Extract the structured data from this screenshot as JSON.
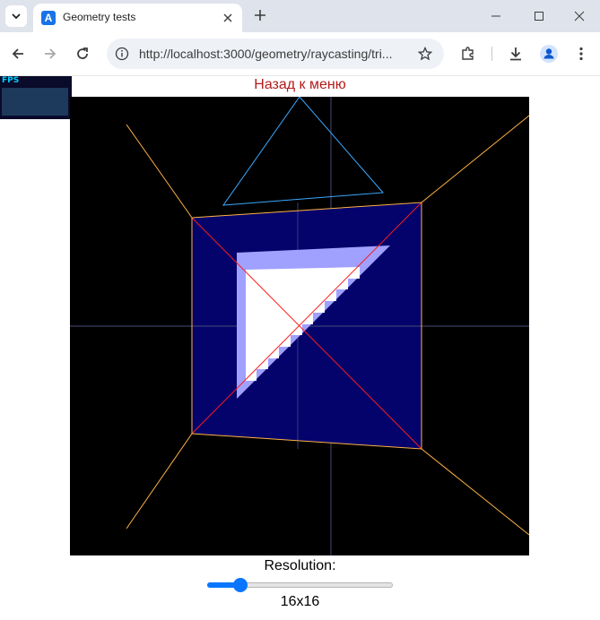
{
  "browser": {
    "tab_title": "Geometry tests",
    "tab_favicon_letter": "A",
    "url": "http://localhost:3000/geometry/raycasting/tri...",
    "accent_color": "#1a73e8"
  },
  "page": {
    "fps_label": "FPS",
    "back_link": "Назад к меню",
    "resolution_label": "Resolution:",
    "resolution_value": "16x16",
    "resolution_slider_level": 0.18
  },
  "icons": [
    "tab-search-icon",
    "close-icon",
    "plus-icon",
    "minimize-icon",
    "maximize-icon",
    "close-window-icon",
    "back-arrow-icon",
    "forward-arrow-icon",
    "reload-icon",
    "info-icon",
    "star-icon",
    "extensions-icon",
    "download-icon",
    "profile-icon",
    "more-icon"
  ],
  "colors": {
    "scene_background": "#000000",
    "quad_fill": "#03036b",
    "quad_edge": "#ffb347",
    "triangle_outline": "#3aa8ff",
    "raster_fill": "#ffffff",
    "raster_edge": "#a0a0ff",
    "diagonal": "#ff1a1a",
    "axis": "#4a4a7a",
    "back_link": "#b51b1b",
    "slider": "#0a76ff"
  }
}
